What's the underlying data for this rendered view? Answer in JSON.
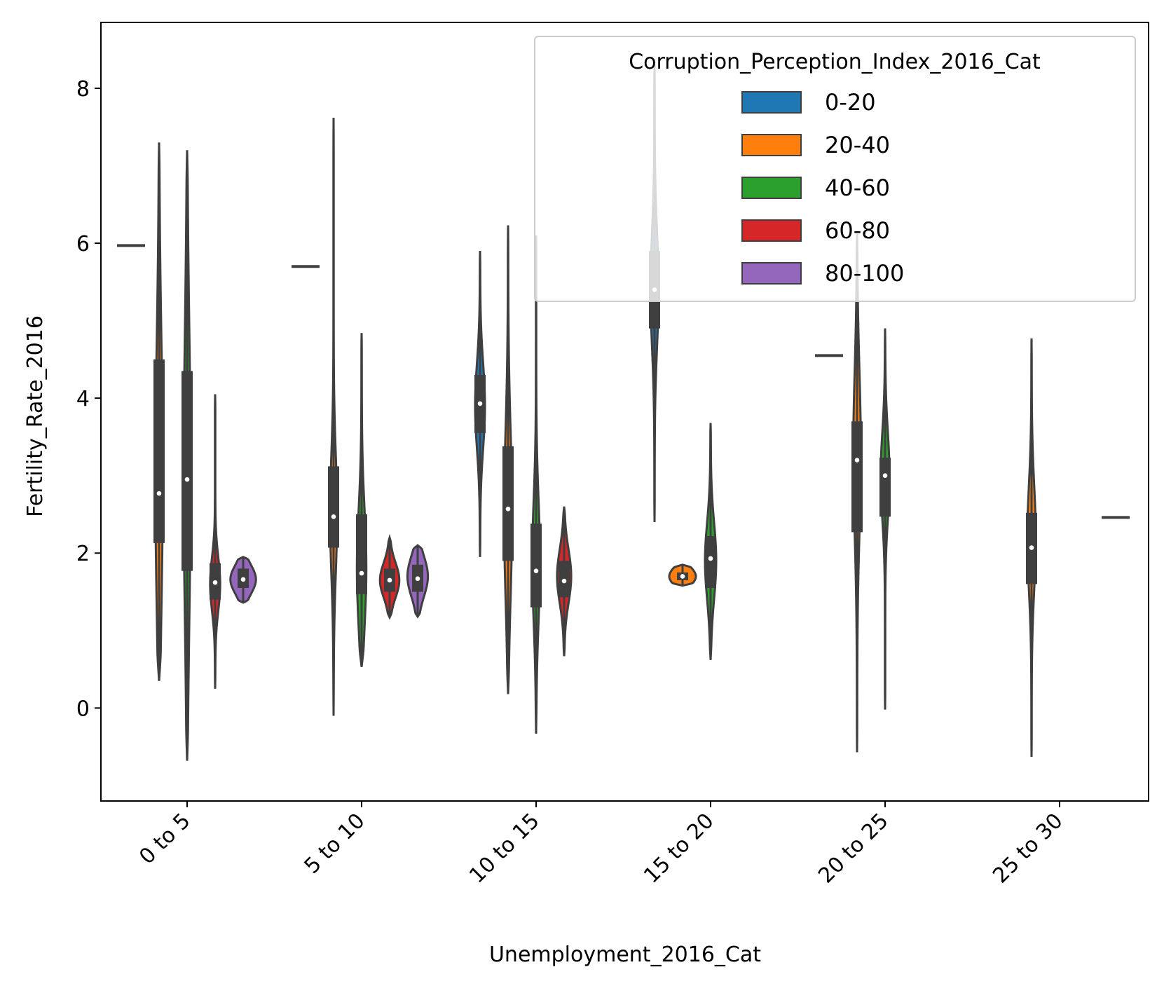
{
  "chart_data": {
    "type": "violin",
    "xlabel": "Unemployment_2016_Cat",
    "ylabel": "Fertility_Rate_2016",
    "ylim": [
      -1.2,
      8.85
    ],
    "yticks": [
      0,
      2,
      4,
      6,
      8
    ],
    "categories": [
      "0 to 5",
      "5 to 10",
      "10 to 15",
      "15 to 20",
      "20 to 25",
      "25 to 30"
    ],
    "legend": {
      "title": "Corruption_Perception_Index_2016_Cat",
      "placement": "top-right",
      "entries": [
        {
          "label": "0-20",
          "color": "#1f77b4"
        },
        {
          "label": "20-40",
          "color": "#ff7f0e"
        },
        {
          "label": "40-60",
          "color": "#2ca02c"
        },
        {
          "label": "60-80",
          "color": "#d62728"
        },
        {
          "label": "80-100",
          "color": "#9467bd"
        }
      ]
    },
    "series": [
      {
        "name": "0-20",
        "color": "#1f77b4",
        "violins": [
          {
            "category": "0 to 5",
            "min": 5.97,
            "max": 5.97,
            "q1": 5.97,
            "median": 5.97,
            "q3": 5.97,
            "single": true
          },
          {
            "category": "5 to 10",
            "min": 5.7,
            "max": 5.7,
            "q1": 5.7,
            "median": 5.7,
            "q3": 5.7,
            "single": true
          },
          {
            "category": "10 to 15",
            "min": 1.95,
            "max": 5.9,
            "q1": 3.55,
            "median": 3.93,
            "q3": 4.3,
            "peak": 3.9
          },
          {
            "category": "15 to 20",
            "min": 2.4,
            "max": 8.3,
            "q1": 4.9,
            "median": 5.4,
            "q3": 5.9,
            "peak": 5.4
          },
          {
            "category": "20 to 25",
            "min": 4.55,
            "max": 4.55,
            "q1": 4.55,
            "median": 4.55,
            "q3": 4.55,
            "single": true
          }
        ]
      },
      {
        "name": "20-40",
        "color": "#ff7f0e",
        "violins": [
          {
            "category": "0 to 5",
            "min": 0.35,
            "max": 7.3,
            "q1": 2.13,
            "median": 2.77,
            "q3": 4.5,
            "peak": 3.0
          },
          {
            "category": "5 to 10",
            "min": -0.1,
            "max": 7.62,
            "q1": 2.07,
            "median": 2.47,
            "q3": 3.12,
            "peak": 2.5
          },
          {
            "category": "10 to 15",
            "min": 0.18,
            "max": 6.23,
            "q1": 1.9,
            "median": 2.57,
            "q3": 3.38,
            "peak": 2.5
          },
          {
            "category": "15 to 20",
            "min": 1.58,
            "max": 1.85,
            "q1": 1.65,
            "median": 1.7,
            "q3": 1.75,
            "peak": 1.7
          },
          {
            "category": "20 to 25",
            "min": -0.57,
            "max": 6.12,
            "q1": 2.27,
            "median": 3.2,
            "q3": 3.7,
            "peak": 3.3
          },
          {
            "category": "25 to 30",
            "min": -0.63,
            "max": 4.77,
            "q1": 1.6,
            "median": 2.07,
            "q3": 2.52,
            "peak": 2.2
          }
        ]
      },
      {
        "name": "40-60",
        "color": "#2ca02c",
        "violins": [
          {
            "category": "0 to 5",
            "min": -0.68,
            "max": 7.2,
            "q1": 1.77,
            "median": 2.95,
            "q3": 4.35,
            "peak": 3.0
          },
          {
            "category": "5 to 10",
            "min": 0.53,
            "max": 4.84,
            "q1": 1.47,
            "median": 1.74,
            "q3": 2.5,
            "peak": 1.8
          },
          {
            "category": "10 to 15",
            "min": -0.33,
            "max": 6.1,
            "q1": 1.3,
            "median": 1.77,
            "q3": 2.38,
            "peak": 1.9
          },
          {
            "category": "15 to 20",
            "min": 0.62,
            "max": 3.68,
            "q1": 1.55,
            "median": 1.93,
            "q3": 2.22,
            "peak": 1.9
          },
          {
            "category": "20 to 25",
            "min": -0.02,
            "max": 4.9,
            "q1": 2.47,
            "median": 3.0,
            "q3": 3.23,
            "peak": 3.0
          }
        ]
      },
      {
        "name": "60-80",
        "color": "#d62728",
        "violins": [
          {
            "category": "0 to 5",
            "min": 0.25,
            "max": 4.05,
            "q1": 1.4,
            "median": 1.62,
            "q3": 1.87,
            "peak": 1.6
          },
          {
            "category": "5 to 10",
            "min": 1.17,
            "max": 2.2,
            "q1": 1.5,
            "median": 1.65,
            "q3": 1.8,
            "peak": 1.65
          },
          {
            "category": "10 to 15",
            "min": 0.67,
            "max": 2.6,
            "q1": 1.43,
            "median": 1.64,
            "q3": 1.9,
            "peak": 1.7
          }
        ]
      },
      {
        "name": "80-100",
        "color": "#9467bd",
        "violins": [
          {
            "category": "0 to 5",
            "min": 1.36,
            "max": 1.95,
            "q1": 1.55,
            "median": 1.66,
            "q3": 1.8,
            "peak": 1.66
          },
          {
            "category": "5 to 10",
            "min": 1.18,
            "max": 2.1,
            "q1": 1.5,
            "median": 1.67,
            "q3": 1.85,
            "peak": 1.7
          },
          {
            "category": "25 to 30",
            "min": 2.46,
            "max": 2.46,
            "q1": 2.46,
            "median": 2.46,
            "q3": 2.46,
            "single": true
          }
        ]
      }
    ]
  }
}
